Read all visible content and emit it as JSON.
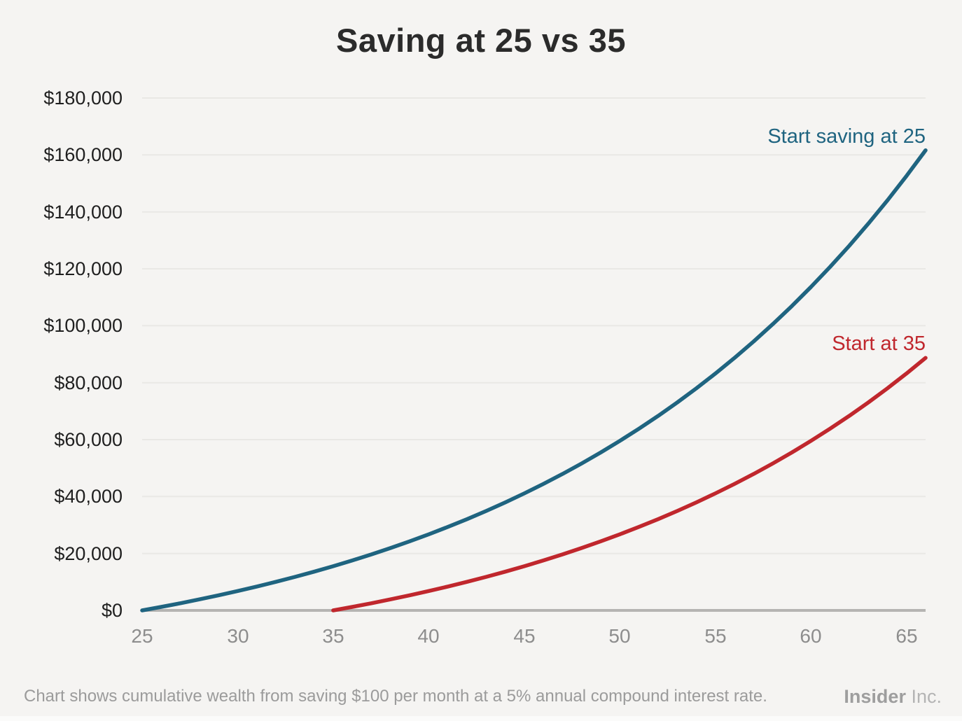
{
  "page": {
    "title": "Saving at 25 vs 35",
    "footnote": "Chart shows cumulative wealth from saving $100 per month at a 5% annual compound interest rate.",
    "brand": {
      "name": "Insider",
      "suffix": "Inc."
    }
  },
  "colors": {
    "background": "#f5f4f2",
    "gridline": "#e9e8e5",
    "axis": "#b5b4b2",
    "title_text": "#2b2b2b",
    "y_label_text": "#1f1f1f",
    "x_label_text": "#8d8d8d",
    "footnote_text": "#9b9b9b",
    "brand_text": "#9e9e9e",
    "series_start_25": "#1f6480",
    "series_start_35": "#c0272d"
  },
  "chart_data": {
    "type": "line",
    "title": "Saving at 25 vs 35",
    "xlabel": "",
    "ylabel": "",
    "xlim": [
      25,
      66
    ],
    "ylim": [
      0,
      180000
    ],
    "grid": true,
    "legend_position": "inline-annotations",
    "x_ticks": [
      25,
      30,
      35,
      40,
      45,
      50,
      55,
      60,
      65
    ],
    "y_ticks": [
      0,
      20000,
      40000,
      60000,
      80000,
      100000,
      120000,
      140000,
      160000,
      180000
    ],
    "y_tick_labels": [
      "$0",
      "$20,000",
      "$40,000",
      "$60,000",
      "$80,000",
      "$100,000",
      "$120,000",
      "$140,000",
      "$160,000",
      "$180,000"
    ],
    "x": [
      25,
      26,
      27,
      28,
      29,
      30,
      31,
      32,
      33,
      34,
      35,
      36,
      37,
      38,
      39,
      40,
      41,
      42,
      43,
      44,
      45,
      46,
      47,
      48,
      49,
      50,
      51,
      52,
      53,
      54,
      55,
      56,
      57,
      58,
      59,
      60,
      61,
      62,
      63,
      64,
      65,
      66
    ],
    "series": [
      {
        "name": "Start saving at 25",
        "label": "Start saving at 25",
        "color": "#1f6480",
        "start_age": 25,
        "values": [
          0,
          1228,
          2519,
          3875,
          5301,
          6801,
          8376,
          10033,
          11774,
          13604,
          15528,
          17550,
          19676,
          21911,
          24260,
          26729,
          29324,
          32052,
          34920,
          37934,
          41103,
          44434,
          47935,
          51615,
          55483,
          59550,
          63824,
          68317,
          73041,
          78005,
          83224,
          88709,
          94476,
          100537,
          106908,
          113606,
          120646,
          128046,
          135824,
          144001,
          152596,
          161631
        ]
      },
      {
        "name": "Start at 35",
        "label": "Start at 35",
        "color": "#c0272d",
        "start_age": 35,
        "values": [
          null,
          null,
          null,
          null,
          null,
          null,
          null,
          null,
          null,
          null,
          0,
          1228,
          2519,
          3875,
          5301,
          6801,
          8376,
          10033,
          11774,
          13604,
          15528,
          17550,
          19676,
          21911,
          24260,
          26729,
          29324,
          32052,
          34920,
          37934,
          41103,
          44434,
          47935,
          51615,
          55483,
          59550,
          63824,
          68317,
          73041,
          78005,
          83224,
          88709
        ]
      }
    ],
    "footnote": "Chart shows cumulative wealth from saving $100 per month at a 5% annual compound interest rate."
  }
}
